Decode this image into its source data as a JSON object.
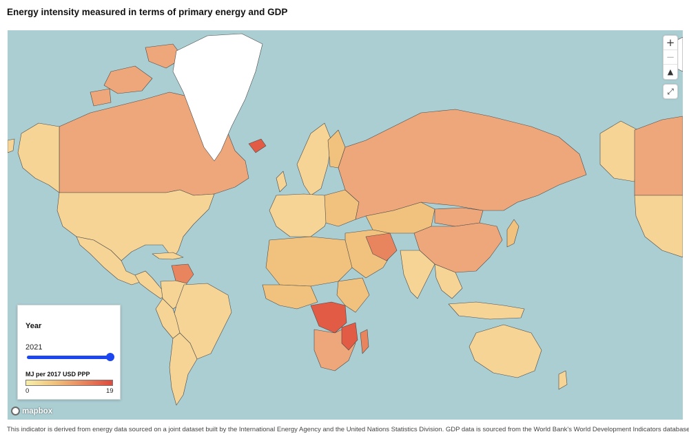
{
  "title": "Energy intensity measured in terms of primary energy and GDP",
  "map": {
    "controls": {
      "zoom_in": "+",
      "zoom_out": "−",
      "compass": "▲",
      "fullscreen": "⤢"
    },
    "colors": {
      "ocean": "#abced3",
      "no_data": "#ffffff",
      "low": "#f7efaa",
      "mid_low": "#f0c27d",
      "mid": "#eea77a",
      "mid_high": "#e8855e",
      "high": "#dd4a3e",
      "border": "#4a4a4a"
    },
    "attribution": "mapbox"
  },
  "legend": {
    "year_label": "Year",
    "year_value": "2021",
    "slider_position": 1.0,
    "unit_label": "MJ per 2017 USD PPP",
    "min": "0",
    "max": "19"
  },
  "footnote": "This indicator is derived from energy data sourced on a joint dataset built by the International Energy Agency and the United Nations Statistics Division. GDP data is sourced from the World Bank's World Development Indicators database."
}
